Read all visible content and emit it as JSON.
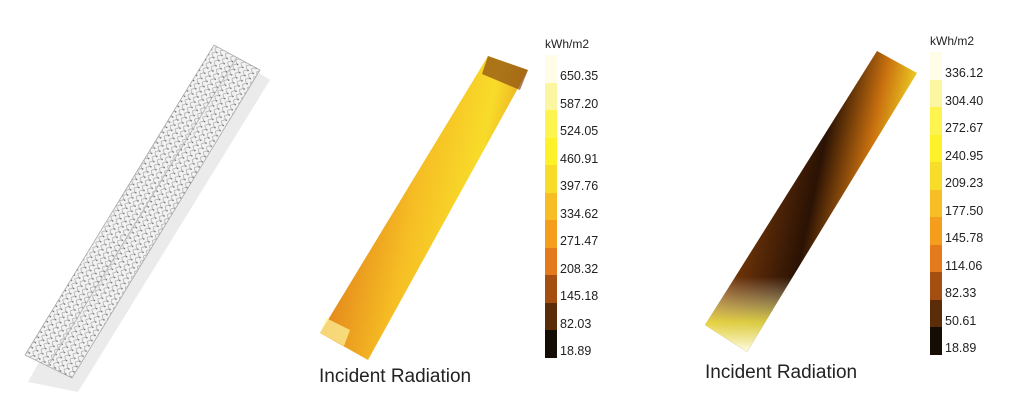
{
  "panels": [
    {
      "name": "mesh-model"
    },
    {
      "caption": "Incident Radiation",
      "legend": {
        "unit": "kWh/m2",
        "labels": [
          "650.35",
          "587.20",
          "524.05",
          "460.91",
          "397.76",
          "334.62",
          "271.47",
          "208.32",
          "145.18",
          "82.03",
          "18.89"
        ]
      }
    },
    {
      "caption": "Incident Radiation",
      "legend": {
        "unit": "kWh/m2",
        "labels": [
          "336.12",
          "304.40",
          "272.67",
          "240.95",
          "209.23",
          "177.50",
          "145.78",
          "114.06",
          "82.33",
          "50.61",
          "18.89"
        ]
      }
    }
  ],
  "colors": [
    "#fffde8",
    "#fdf6a0",
    "#fdf450",
    "#fdf22a",
    "#f8dc2a",
    "#f6be24",
    "#f59e1e",
    "#e47a1c",
    "#a44e12",
    "#5a2c08",
    "#150c04"
  ]
}
